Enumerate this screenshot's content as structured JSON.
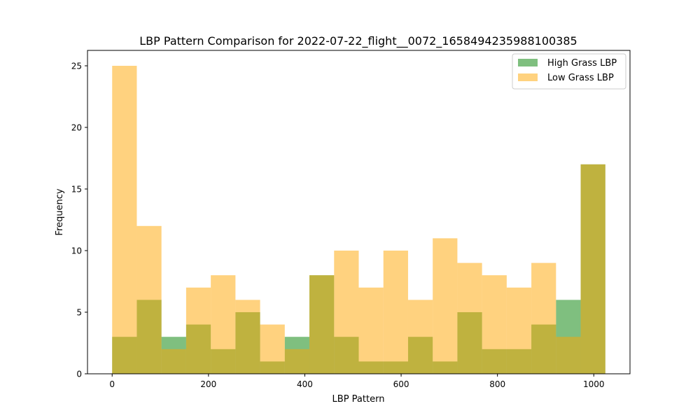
{
  "chart_data": {
    "type": "bar",
    "title": "LBP Pattern Comparison for 2022-07-22_flight__0072_1658494235988100385",
    "xlabel": "LBP Pattern",
    "ylabel": "Frequency",
    "xlim": [
      -51.2,
      1075.2
    ],
    "ylim": [
      0,
      26.25
    ],
    "xticks": [
      0,
      200,
      400,
      600,
      800,
      1000
    ],
    "yticks": [
      0,
      5,
      10,
      15,
      20,
      25
    ],
    "bin_edges": [
      0,
      51.2,
      102.4,
      153.6,
      204.8,
      256,
      307.2,
      358.4,
      409.6,
      460.8,
      512,
      563.2,
      614.4,
      665.6,
      716.8,
      768,
      819.2,
      870.4,
      921.6,
      972.8,
      1024
    ],
    "legend_position": "top-right",
    "grid": false,
    "series": [
      {
        "name": "High Grass LBP",
        "color": "#008000",
        "opacity": 0.5,
        "values": [
          3,
          6,
          3,
          4,
          2,
          5,
          1,
          3,
          8,
          3,
          1,
          1,
          3,
          1,
          5,
          2,
          2,
          4,
          6,
          17
        ]
      },
      {
        "name": "Low Grass LBP",
        "color": "#ffa500",
        "opacity": 0.5,
        "values": [
          25,
          12,
          2,
          7,
          8,
          6,
          4,
          2,
          8,
          10,
          7,
          10,
          6,
          11,
          9,
          8,
          7,
          9,
          3,
          17
        ]
      }
    ]
  }
}
